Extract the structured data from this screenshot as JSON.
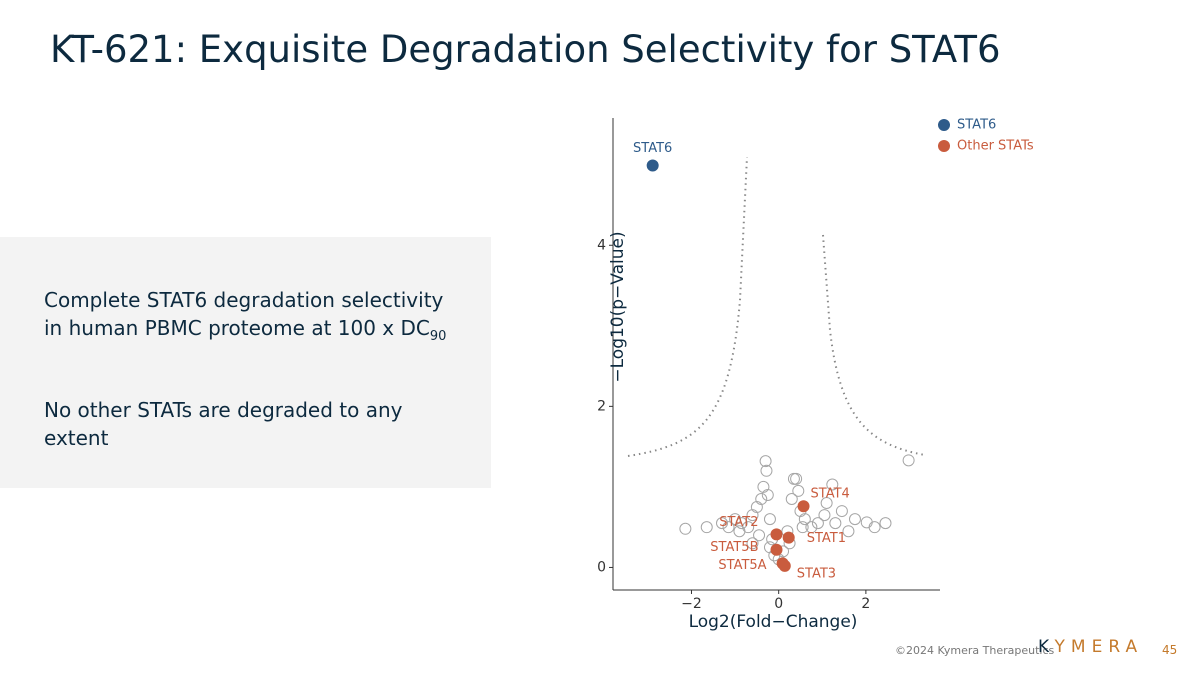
{
  "title": "KT-621: Exquisite Degradation Selectivity for STAT6",
  "panel": {
    "paragraph1": "Complete STAT6 degradation selectivity in human PBMC proteome at 100 x DC",
    "paragraph1_subscript": "90",
    "paragraph2": "No other STATs are degraded to any extent"
  },
  "footer": {
    "copyright": "©2024 Kymera Therapeutics",
    "logo_k": "K",
    "logo": "YMERA",
    "page": "45"
  },
  "chart_data": {
    "type": "scatter",
    "x_label": "Log2(Fold−Change)",
    "y_label": "−Log10(p−Value)",
    "xlim": [
      -3.8,
      3.7
    ],
    "ylim": [
      -0.28,
      5.58
    ],
    "xticks": [
      {
        "value": -2,
        "label": "−2"
      },
      0,
      2
    ],
    "yticks": [
      0,
      2,
      4
    ],
    "legend": "top-right",
    "series": [
      {
        "color": "#a6a6a6",
        "hollow": true,
        "x": [
          -2.14,
          -1.65,
          -1.3,
          -1.15,
          -1.0,
          -0.85,
          -0.7,
          -0.6,
          -0.5,
          -0.4,
          -0.35,
          -0.3,
          -0.28,
          -0.25,
          -0.2,
          -0.15,
          -0.1,
          0.1,
          0.2,
          0.3,
          0.35,
          0.4,
          0.45,
          0.5,
          0.6,
          0.75,
          0.9,
          1.05,
          1.23,
          1.3,
          1.45,
          1.6,
          1.75,
          2.02,
          2.2,
          2.45,
          2.98,
          -0.45,
          -0.2,
          0.25,
          0.55,
          -0.9,
          1.1,
          0.0,
          -0.6
        ],
        "y": [
          0.48,
          0.5,
          0.55,
          0.5,
          0.6,
          0.55,
          0.5,
          0.65,
          0.75,
          0.85,
          1.0,
          1.32,
          1.2,
          0.9,
          0.6,
          0.35,
          0.15,
          0.2,
          0.45,
          0.85,
          1.1,
          1.1,
          0.95,
          0.7,
          0.6,
          0.5,
          0.55,
          0.65,
          1.03,
          0.55,
          0.7,
          0.45,
          0.6,
          0.56,
          0.5,
          0.55,
          1.33,
          0.4,
          0.25,
          0.3,
          0.5,
          0.45,
          0.8,
          0.1,
          0.3
        ]
      },
      {
        "name": "STAT6",
        "color": "#2e5b8a",
        "x": [
          -2.89
        ],
        "y": [
          4.99
        ],
        "labels": [
          "STAT6"
        ]
      },
      {
        "name": "Other STATs",
        "color": "#c95c3e",
        "x": [
          0.57,
          -0.05,
          0.23,
          -0.05,
          0.09,
          0.14
        ],
        "y": [
          0.76,
          0.41,
          0.37,
          0.22,
          0.05,
          0.02
        ],
        "labels": [
          "STAT4",
          "STAT2",
          "STAT1",
          "STAT5B",
          "STAT5A",
          "STAT3"
        ]
      }
    ]
  }
}
